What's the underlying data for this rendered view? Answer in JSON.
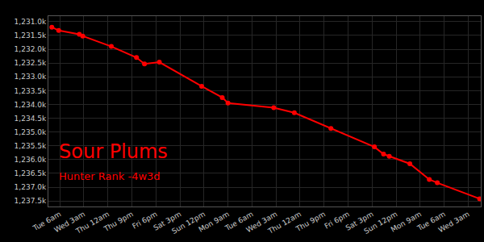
{
  "chart_data": {
    "type": "line",
    "title": "Sour Plums",
    "subtitle": "Hunter Rank -4w3d",
    "x": [
      -7,
      -1,
      17,
      20,
      45,
      67,
      74,
      87,
      124,
      142,
      147,
      187,
      205,
      237,
      275,
      283,
      288,
      306,
      323,
      330,
      367
    ],
    "values": [
      1231200,
      1231320,
      1231460,
      1231520,
      1231900,
      1232300,
      1232530,
      1232470,
      1233340,
      1233750,
      1233950,
      1234120,
      1234300,
      1234870,
      1235540,
      1235800,
      1235880,
      1236150,
      1236720,
      1236840,
      1237420
    ],
    "color": "#ff0000",
    "marker": "circle",
    "line_style": "solid",
    "grid": true,
    "xlim": [
      -10,
      368
    ],
    "xticks": [
      {
        "value": 0,
        "label": "Tue 6am"
      },
      {
        "value": 21,
        "label": "Wed 3am"
      },
      {
        "value": 42,
        "label": "Thu 12am"
      },
      {
        "value": 63,
        "label": "Thu 9pm"
      },
      {
        "value": 84,
        "label": "Fri 6pm"
      },
      {
        "value": 105,
        "label": "Sat 3pm"
      },
      {
        "value": 126,
        "label": "Sun 12pm"
      },
      {
        "value": 147,
        "label": "Mon 9am"
      },
      {
        "value": 168,
        "label": "Tue 6am"
      },
      {
        "value": 189,
        "label": "Wed 3am"
      },
      {
        "value": 210,
        "label": "Thu 12am"
      },
      {
        "value": 231,
        "label": "Thu 9pm"
      },
      {
        "value": 252,
        "label": "Fri 6pm"
      },
      {
        "value": 273,
        "label": "Sat 3pm"
      },
      {
        "value": 294,
        "label": "Sun 12pm"
      },
      {
        "value": 315,
        "label": "Mon 9am"
      },
      {
        "value": 336,
        "label": "Tue 6am"
      },
      {
        "value": 357,
        "label": "Wed 3am"
      }
    ],
    "ylim": [
      1237700,
      1230800
    ],
    "yticks": [
      {
        "value": 1231000,
        "label": "1,231.0k"
      },
      {
        "value": 1231500,
        "label": "1,231.5k"
      },
      {
        "value": 1232000,
        "label": "1,232.0k"
      },
      {
        "value": 1232500,
        "label": "1,232.5k"
      },
      {
        "value": 1233000,
        "label": "1,233.0k"
      },
      {
        "value": 1233500,
        "label": "1,233.5k"
      },
      {
        "value": 1234000,
        "label": "1,234.0k"
      },
      {
        "value": 1234500,
        "label": "1,234.5k"
      },
      {
        "value": 1235000,
        "label": "1,235.0k"
      },
      {
        "value": 1235500,
        "label": "1,235.5k"
      },
      {
        "value": 1236000,
        "label": "1,236.0k"
      },
      {
        "value": 1236500,
        "label": "1,236.5k"
      },
      {
        "value": 1237000,
        "label": "1,237.0k"
      },
      {
        "value": 1237500,
        "label": "1,237.5k"
      }
    ]
  }
}
